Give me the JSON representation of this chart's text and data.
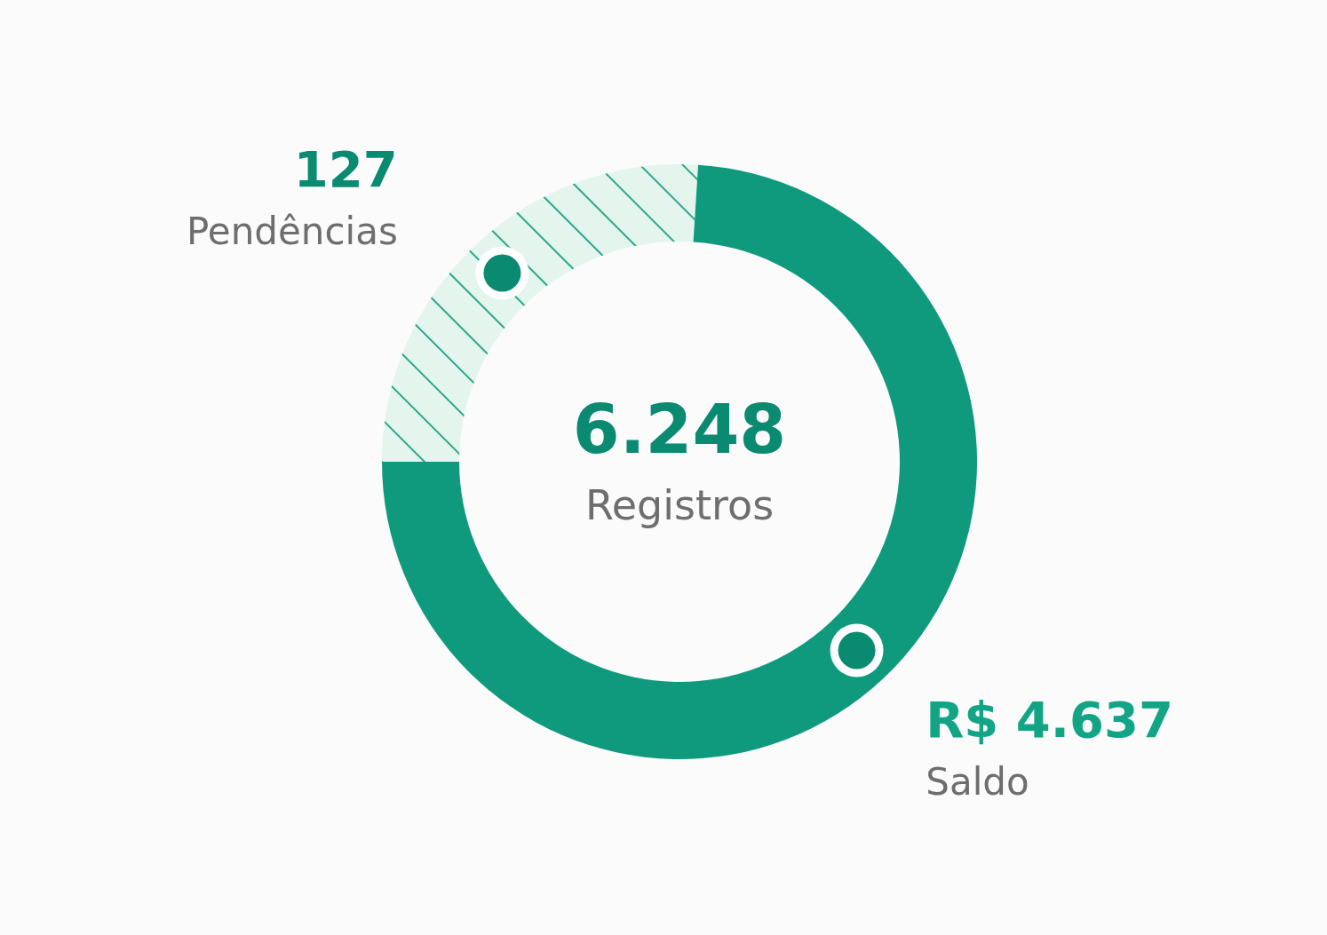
{
  "chart_data": {
    "type": "donut",
    "categories": [
      "Pendências",
      "Saldo"
    ],
    "values": [
      26,
      74
    ],
    "colors": [
      "#e4f5ee",
      "#0f9a7e"
    ],
    "annotations": [
      "127",
      "R$ 4.637",
      "6.248",
      "Registros"
    ]
  }
}
